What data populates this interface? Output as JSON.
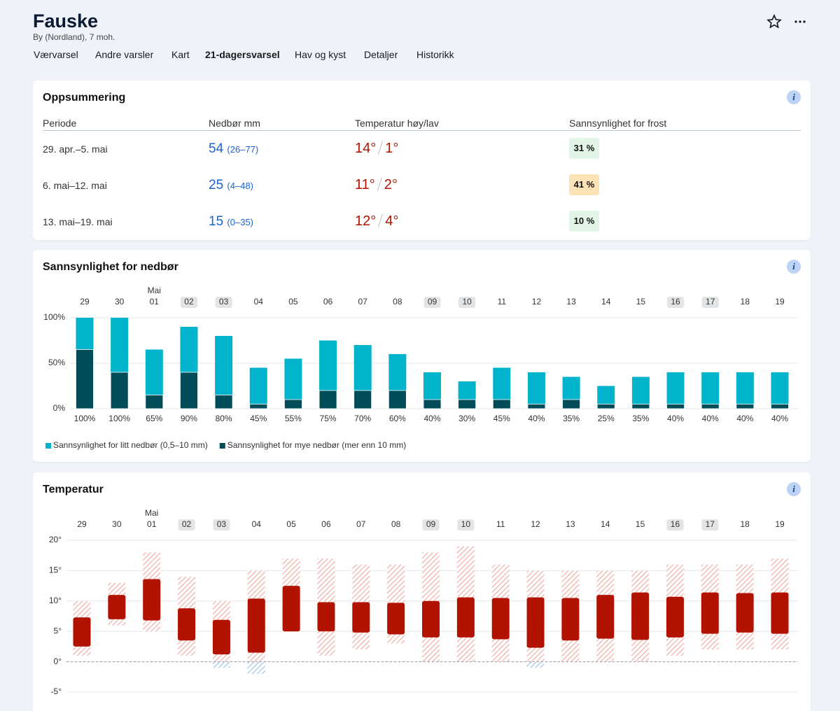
{
  "header": {
    "title": "Fauske",
    "subtitle": "By (Nordland), 7 moh.",
    "tabs": [
      "Værvarsel",
      "Andre varsler",
      "Kart",
      "21-dagersvarsel",
      "Hav og kyst",
      "Detaljer",
      "Historikk"
    ],
    "active_tab": 3
  },
  "info_icon": "i",
  "summary": {
    "title": "Oppsummering",
    "columns": [
      "Periode",
      "Nedbør mm",
      "Temperatur høy/lav",
      "Sannsynlighet for frost"
    ],
    "rows": [
      {
        "period": "29. apr.–5. mai",
        "precip": "54",
        "precip_range": "(26–77)",
        "temp_high": "14°",
        "temp_low": "1°",
        "frost": "31 %",
        "frost_color": "#e2f4e5"
      },
      {
        "period": "6. mai–12. mai",
        "precip": "25",
        "precip_range": "(4–48)",
        "temp_high": "11°",
        "temp_low": "2°",
        "frost": "41 %",
        "frost_color": "#fde2b6"
      },
      {
        "period": "13. mai–19. mai",
        "precip": "15",
        "precip_range": "(0–35)",
        "temp_high": "12°",
        "temp_low": "4°",
        "frost": "10 %",
        "frost_color": "#e2f4e5"
      }
    ]
  },
  "chart_data": [
    {
      "type": "bar",
      "title": "Sannsynlighet for nedbør",
      "month_label": "Mai",
      "month_label_index": 2,
      "categories": [
        "29",
        "30",
        "01",
        "02",
        "03",
        "04",
        "05",
        "06",
        "07",
        "08",
        "09",
        "10",
        "11",
        "12",
        "13",
        "14",
        "15",
        "16",
        "17",
        "18",
        "19"
      ],
      "highlighted": [
        3,
        4,
        10,
        11,
        17,
        18
      ],
      "ylim": [
        0,
        100
      ],
      "yticks": [
        {
          "value": 0,
          "label": "0%"
        },
        {
          "value": 50,
          "label": "50%"
        },
        {
          "value": 100,
          "label": "100%"
        }
      ],
      "grid": true,
      "series": [
        {
          "name": "Sannsynlighet for litt nedbør (0,5–10 mm)",
          "color": "#02b4cb",
          "values": [
            100,
            100,
            65,
            90,
            80,
            45,
            55,
            75,
            70,
            60,
            40,
            30,
            45,
            40,
            35,
            25,
            35,
            40,
            40,
            40,
            40
          ],
          "value_labels": [
            "100%",
            "100%",
            "65%",
            "90%",
            "80%",
            "45%",
            "55%",
            "75%",
            "70%",
            "60%",
            "40%",
            "30%",
            "45%",
            "40%",
            "35%",
            "25%",
            "35%",
            "40%",
            "40%",
            "40%",
            "40%"
          ]
        },
        {
          "name": "Sannsynlighet for mye nedbør (mer enn 10 mm)",
          "color": "#004d59",
          "values": [
            65,
            40,
            15,
            40,
            15,
            5,
            10,
            20,
            20,
            20,
            10,
            10,
            10,
            5,
            10,
            5,
            5,
            5,
            5,
            5,
            5
          ]
        }
      ]
    },
    {
      "type": "range",
      "title": "Temperatur",
      "month_label": "Mai",
      "month_label_index": 2,
      "categories": [
        "29",
        "30",
        "01",
        "02",
        "03",
        "04",
        "05",
        "06",
        "07",
        "08",
        "09",
        "10",
        "11",
        "12",
        "13",
        "14",
        "15",
        "16",
        "17",
        "18",
        "19"
      ],
      "highlighted": [
        3,
        4,
        10,
        11,
        17,
        18
      ],
      "ylim": [
        -5,
        20
      ],
      "yticks": [
        {
          "value": -5,
          "label": "-5°"
        },
        {
          "value": 0,
          "label": "0°"
        },
        {
          "value": 5,
          "label": "5°"
        },
        {
          "value": 10,
          "label": "10°"
        },
        {
          "value": 15,
          "label": "15°"
        },
        {
          "value": 20,
          "label": "20°"
        }
      ],
      "grid": true,
      "color": "#b21200",
      "range_color": "#f3a69c",
      "below_zero_color": "#94bff0",
      "outer_low": [
        1,
        6,
        5,
        1,
        -1,
        -2,
        5,
        1,
        2,
        3,
        0,
        0,
        0,
        -1,
        0,
        0,
        0,
        1,
        2,
        2,
        2
      ],
      "outer_high": [
        10,
        13,
        18,
        14,
        10,
        15,
        17,
        17,
        16,
        16,
        18,
        19,
        16,
        15,
        15,
        15,
        15,
        16,
        16,
        16,
        17
      ],
      "inner_low": [
        2.5,
        7,
        6.8,
        3.5,
        1.2,
        1.5,
        5,
        5,
        4.8,
        4.5,
        4,
        4,
        3.7,
        2.3,
        3.5,
        3.8,
        3.6,
        4,
        4.6,
        4.8,
        4.6
      ],
      "inner_high": [
        7.3,
        11,
        13.6,
        8.8,
        6.9,
        10.4,
        12.5,
        9.8,
        9.8,
        9.7,
        10,
        10.6,
        10.5,
        10.6,
        10.5,
        11,
        11.4,
        10.7,
        11.4,
        11.3,
        11.4
      ]
    }
  ]
}
